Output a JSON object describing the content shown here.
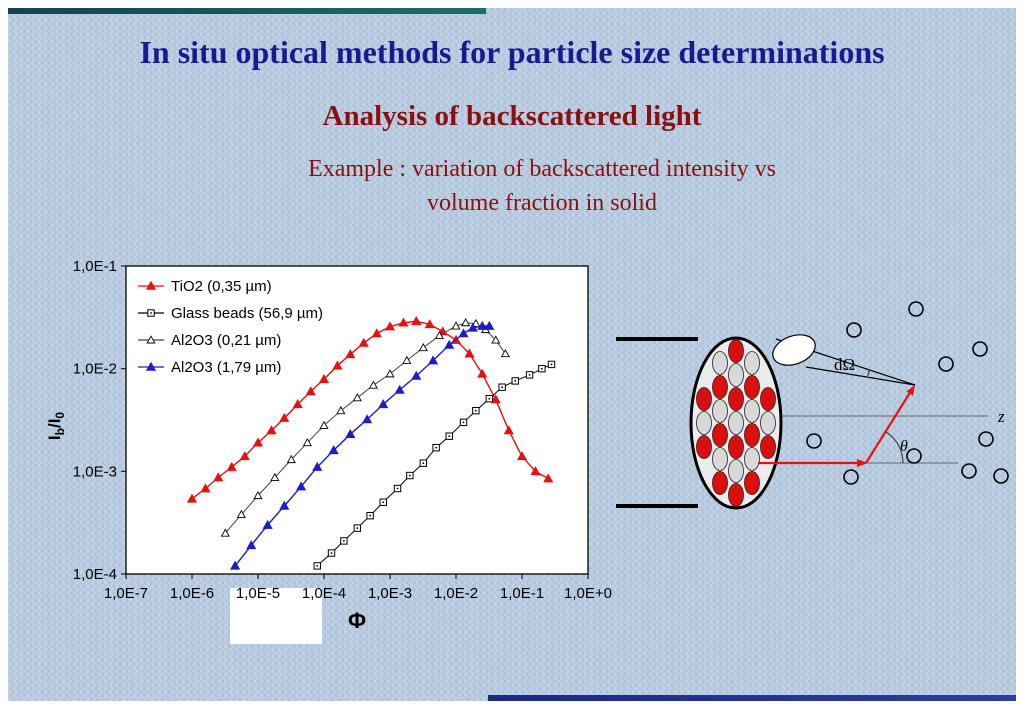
{
  "slide": {
    "title": "In situ optical methods for particle size determinations",
    "subtitle": "Analysis of backscattered light",
    "example": {
      "line1": "Example : variation of backscattered intensity vs",
      "line2": "volume fraction in solid"
    }
  },
  "colors": {
    "title": "#1a1a8f",
    "heading_red": "#8b0f0f",
    "background": "#b7cbe0",
    "top_bar_teal": "#1e6e68",
    "bottom_bar_navy": "#1c2a7a",
    "series_red": "#e81010",
    "series_blue": "#1c1cc8",
    "series_black": "#000000"
  },
  "chart_data": {
    "type": "scatter",
    "title": "",
    "xlabel": "Φ",
    "ylabel": "Ib/I0",
    "ylabel_parts": {
      "base": "I",
      "sub": "b",
      "base2": "/I",
      "sub2": "0"
    },
    "x_scale": "log",
    "y_scale": "log",
    "xlim": [
      1e-07,
      1.0
    ],
    "ylim": [
      0.0001,
      0.1
    ],
    "grid": false,
    "legend_position": "top-left-inside",
    "x_tick_labels": [
      "1,0E-7",
      "1,0E-6",
      "1,0E-5",
      "1,0E-4",
      "1,0E-3",
      "1,0E-2",
      "1,0E-1",
      "1,0E+0"
    ],
    "y_tick_labels": [
      "1,0E-4",
      "1,0E-3",
      "1,0E-2",
      "1,0E-1"
    ],
    "series": [
      {
        "name": "TiO2 (0,35 µm)",
        "color": "#e81010",
        "marker": "triangle-filled",
        "line": "solid",
        "points": [
          [
            1e-06,
            0.00054
          ],
          [
            1.6e-06,
            0.00068
          ],
          [
            2.5e-06,
            0.00087
          ],
          [
            4e-06,
            0.0011
          ],
          [
            6.3e-06,
            0.0014
          ],
          [
            1e-05,
            0.0019
          ],
          [
            1.6e-05,
            0.0025
          ],
          [
            2.5e-05,
            0.0033
          ],
          [
            4e-05,
            0.0045
          ],
          [
            6.3e-05,
            0.006
          ],
          [
            0.0001,
            0.0079
          ],
          [
            0.00016,
            0.0107
          ],
          [
            0.00025,
            0.0138
          ],
          [
            0.0004,
            0.0178
          ],
          [
            0.00063,
            0.022
          ],
          [
            0.001,
            0.0257
          ],
          [
            0.0016,
            0.028
          ],
          [
            0.0025,
            0.029
          ],
          [
            0.004,
            0.027
          ],
          [
            0.0063,
            0.023
          ],
          [
            0.01,
            0.019
          ],
          [
            0.016,
            0.014
          ],
          [
            0.025,
            0.0089
          ],
          [
            0.04,
            0.005
          ],
          [
            0.063,
            0.0025
          ],
          [
            0.1,
            0.0014
          ],
          [
            0.16,
            0.001
          ],
          [
            0.25,
            0.00085
          ]
        ]
      },
      {
        "name": "Glass beads (56,9 µm)",
        "color": "#000000",
        "marker": "square-open",
        "line": "solid",
        "points": [
          [
            7.9e-05,
            0.00012
          ],
          [
            0.00013,
            0.00016
          ],
          [
            0.0002,
            0.00021
          ],
          [
            0.00032,
            0.00028
          ],
          [
            0.0005,
            0.00037
          ],
          [
            0.00079,
            0.0005
          ],
          [
            0.0013,
            0.00068
          ],
          [
            0.002,
            0.00091
          ],
          [
            0.0032,
            0.0012
          ],
          [
            0.005,
            0.0017
          ],
          [
            0.0079,
            0.0022
          ],
          [
            0.013,
            0.003
          ],
          [
            0.02,
            0.0039
          ],
          [
            0.032,
            0.0051
          ],
          [
            0.05,
            0.0066
          ],
          [
            0.079,
            0.0076
          ],
          [
            0.13,
            0.0087
          ],
          [
            0.2,
            0.01
          ],
          [
            0.28,
            0.011
          ]
        ]
      },
      {
        "name": "Al2O3 (0,21 µm)",
        "color": "#444444",
        "marker": "triangle-open",
        "line": "solid",
        "points": [
          [
            3.2e-06,
            0.00025
          ],
          [
            5.6e-06,
            0.00038
          ],
          [
            1e-05,
            0.00058
          ],
          [
            1.8e-05,
            0.00087
          ],
          [
            3.2e-05,
            0.0013
          ],
          [
            5.6e-05,
            0.0019
          ],
          [
            0.0001,
            0.0028
          ],
          [
            0.00018,
            0.0039
          ],
          [
            0.00032,
            0.0052
          ],
          [
            0.00056,
            0.0069
          ],
          [
            0.001,
            0.0089
          ],
          [
            0.0018,
            0.012
          ],
          [
            0.0032,
            0.016
          ],
          [
            0.0056,
            0.021
          ],
          [
            0.01,
            0.026
          ],
          [
            0.014,
            0.028
          ],
          [
            0.02,
            0.0275
          ],
          [
            0.028,
            0.024
          ],
          [
            0.04,
            0.019
          ],
          [
            0.056,
            0.014
          ]
        ]
      },
      {
        "name": "Al2O3 (1,79 µm)",
        "color": "#1c1cc8",
        "marker": "triangle-filled",
        "line": "solid",
        "points": [
          [
            4.5e-06,
            0.00012
          ],
          [
            7.9e-06,
            0.00019
          ],
          [
            1.4e-05,
            0.0003
          ],
          [
            2.5e-05,
            0.00046
          ],
          [
            4.5e-05,
            0.00071
          ],
          [
            7.9e-05,
            0.0011
          ],
          [
            0.00014,
            0.0016
          ],
          [
            0.00025,
            0.0023
          ],
          [
            0.00045,
            0.0032
          ],
          [
            0.00079,
            0.0045
          ],
          [
            0.0014,
            0.0062
          ],
          [
            0.0025,
            0.0085
          ],
          [
            0.0045,
            0.012
          ],
          [
            0.0079,
            0.017
          ],
          [
            0.013,
            0.022
          ],
          [
            0.018,
            0.025
          ],
          [
            0.025,
            0.026
          ],
          [
            0.032,
            0.026
          ]
        ]
      }
    ]
  },
  "diagram": {
    "solid_angle_label": "dΩ",
    "z_axis_label": "z",
    "theta_label": "θ",
    "particle_red": "#dd0e0e",
    "particle_gray": "#d9d9d9",
    "cell_fill": "#ececec"
  }
}
